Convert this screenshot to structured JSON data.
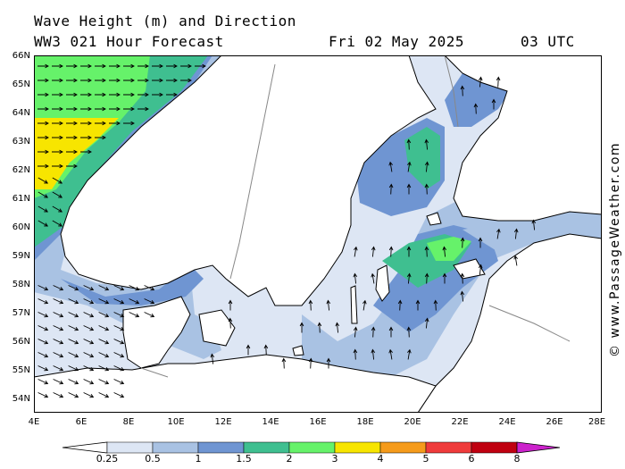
{
  "header": {
    "line1": "Wave Height (m) and Direction",
    "line2": "WW3 021 Hour Forecast",
    "date": "Fri 02 May 2025",
    "time": "03 UTC"
  },
  "credit": "© www.PassageWeather.com",
  "lat_labels": [
    "66N",
    "65N",
    "64N",
    "63N",
    "62N",
    "61N",
    "60N",
    "59N",
    "58N",
    "57N",
    "56N",
    "55N",
    "54N"
  ],
  "lon_labels": [
    "4E",
    "6E",
    "8E",
    "10E",
    "12E",
    "14E",
    "16E",
    "18E",
    "20E",
    "22E",
    "24E",
    "26E",
    "28E"
  ],
  "legend": {
    "colors": [
      "#ffffff",
      "#dde6f4",
      "#a9c2e3",
      "#6f95d2",
      "#3fbf90",
      "#66f26a",
      "#f7e500",
      "#f59b1b",
      "#ef3b3b",
      "#c00010",
      "#cc22cc"
    ],
    "labels": [
      "0.25",
      "0.5",
      "1",
      "1.5",
      "2",
      "3",
      "4",
      "5",
      "6",
      "8"
    ]
  },
  "colors": {
    "land": "#ffffff",
    "coast": "#000000",
    "border": "#888888",
    "frame": "#000000"
  }
}
